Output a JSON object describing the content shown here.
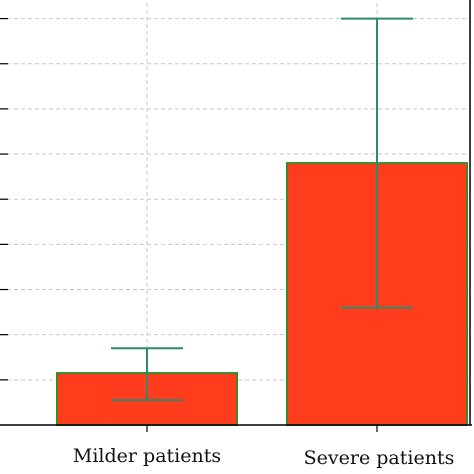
{
  "chart_data": {
    "type": "bar",
    "categories": [
      "Milder patients",
      "Severe patients"
    ],
    "values": [
      1.15,
      5.8
    ],
    "error_low": [
      0.55,
      2.6
    ],
    "error_high": [
      1.7,
      9.0
    ],
    "ylim": [
      0,
      9.5
    ],
    "grid": true,
    "title": "",
    "xlabel": "",
    "ylabel": "",
    "colors": {
      "bar_fill": "#ff3d1c",
      "bar_edge": "#3a8a2a",
      "errorbar": "#2e8b6a",
      "grid": "#c8c8c8",
      "axis": "#000000"
    }
  }
}
